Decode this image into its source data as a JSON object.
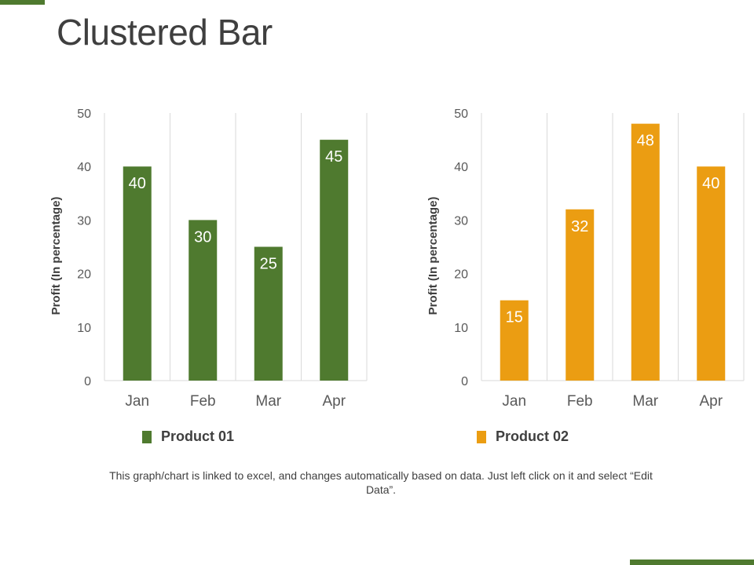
{
  "slide": {
    "title": "Clustered Bar",
    "footnote": "This graph/chart is linked to excel, and changes automatically based on data. Just left click on it and select “Edit Data”.",
    "accent_color": "#4f7a2f"
  },
  "chart_data": [
    {
      "type": "bar",
      "categories": [
        "Jan",
        "Feb",
        "Mar",
        "Apr"
      ],
      "series": [
        {
          "name": "Product 01",
          "values": [
            40,
            30,
            25,
            45
          ],
          "color": "#4f7a2f"
        }
      ],
      "ylabel": "Profit (In percentage)",
      "xlabel": "",
      "ylim": [
        0,
        50
      ],
      "yticks": [
        0,
        10,
        20,
        30,
        40,
        50
      ],
      "grid": "vertical",
      "legend": "bottom"
    },
    {
      "type": "bar",
      "categories": [
        "Jan",
        "Feb",
        "Mar",
        "Apr"
      ],
      "series": [
        {
          "name": "Product 02",
          "values": [
            15,
            32,
            48,
            40
          ],
          "color": "#eb9d12"
        }
      ],
      "ylabel": "Profit (In percentage)",
      "xlabel": "",
      "ylim": [
        0,
        50
      ],
      "yticks": [
        0,
        10,
        20,
        30,
        40,
        50
      ],
      "grid": "vertical",
      "legend": "bottom"
    }
  ]
}
